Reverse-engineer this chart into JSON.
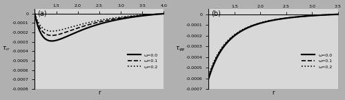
{
  "panel_a": {
    "label": "(a)",
    "xlabel": "r",
    "ylabel_latex": "$\\tau_{rr}$",
    "xlim": [
      1.0,
      4.0
    ],
    "ylim": [
      -0.0008,
      5e-05
    ],
    "xticks": [
      1.5,
      2.0,
      2.5,
      3.0,
      3.5,
      4.0
    ],
    "yticks": [
      0,
      -0.0001,
      -0.0002,
      -0.0003,
      -0.0004,
      -0.0005,
      -0.0006,
      -0.0007,
      -0.0008
    ],
    "omega_values": [
      0.0,
      0.1,
      0.2
    ],
    "linestyles": [
      "solid",
      "dashed",
      "dotted"
    ],
    "linewidths": [
      1.6,
      1.2,
      1.2
    ],
    "scales": [
      -0.000765,
      -0.00061,
      -0.00049
    ],
    "legend_labels": [
      "ω=0.0",
      "ω=0.1",
      "ω=0.2"
    ],
    "b": 4.0
  },
  "panel_b": {
    "label": "(b)",
    "xlabel": "r",
    "ylabel_latex": "$\\tau_{\\varphi\\varphi}$",
    "xlim": [
      1.0,
      3.5
    ],
    "ylim": [
      -0.0007,
      5e-05
    ],
    "xticks": [
      1.5,
      2.0,
      2.5,
      3.0,
      3.5
    ],
    "yticks": [
      0,
      -0.0001,
      -0.0002,
      -0.0003,
      -0.0004,
      -0.0005,
      -0.0006,
      -0.0007
    ],
    "omega_values": [
      0.0,
      0.1,
      0.2
    ],
    "linestyles": [
      "solid",
      "dashed",
      "dotted"
    ],
    "linewidths": [
      1.6,
      1.2,
      1.2
    ],
    "scales": [
      -0.0006,
      -0.000585,
      -0.00057
    ],
    "legend_labels": [
      "ω=0.0",
      "ω=0.1",
      "ω=0.2"
    ],
    "b": 3.5
  },
  "fig_facecolor": "#b0b0b0",
  "ax_facecolor": "#d8d8d8"
}
